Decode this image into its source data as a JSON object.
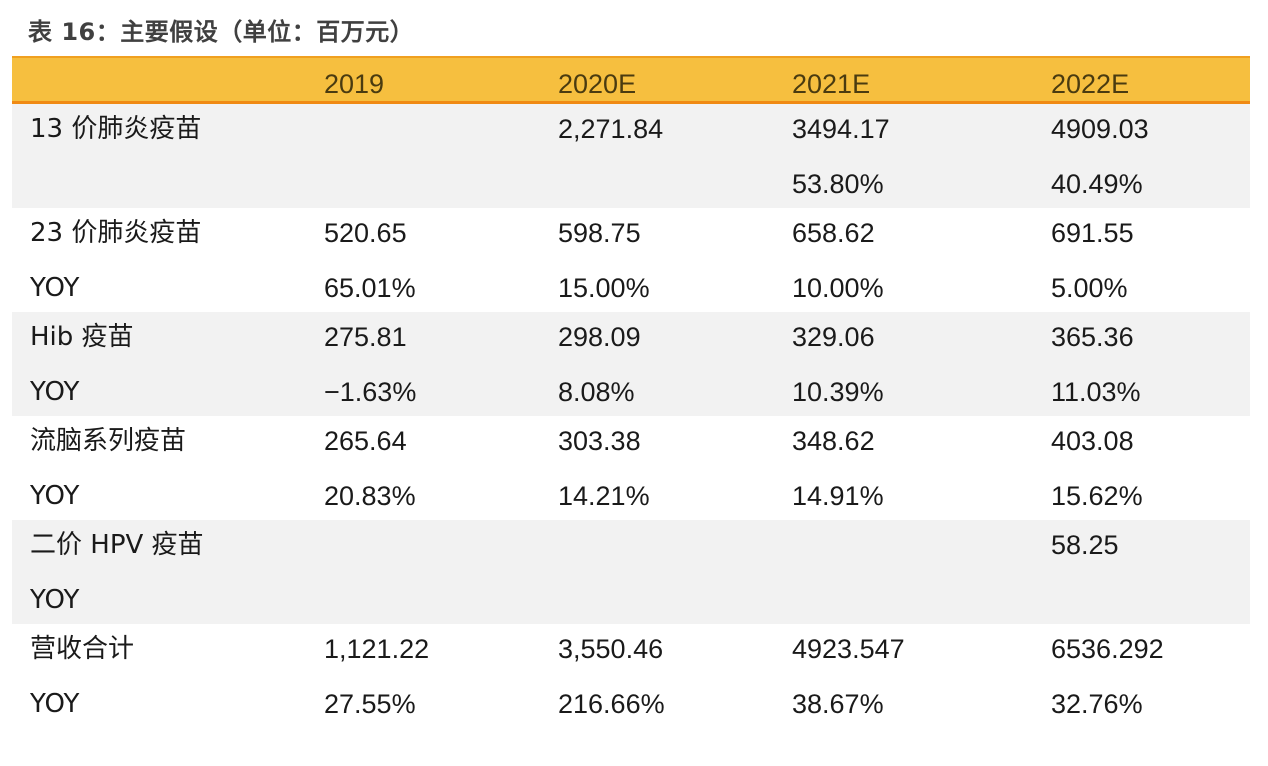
{
  "caption": "表 16：主要假设（单位：百万元）",
  "colors": {
    "header_bg": "#f6bf3f",
    "header_border": "#f08a14",
    "shaded_bg": "#f2f2f2"
  },
  "header": [
    "",
    "2019",
    "2020E",
    "2021E",
    "2022E"
  ],
  "groups": [
    {
      "shaded": true,
      "rows": [
        [
          "13 价肺炎疫苗",
          "",
          "2,271.84",
          "3494.17",
          "4909.03"
        ],
        [
          "",
          "",
          "",
          "53.80%",
          "40.49%"
        ]
      ]
    },
    {
      "shaded": false,
      "rows": [
        [
          "23 价肺炎疫苗",
          "520.65",
          "598.75",
          "658.62",
          "691.55"
        ],
        [
          "YOY",
          "65.01%",
          "15.00%",
          "10.00%",
          "5.00%"
        ]
      ]
    },
    {
      "shaded": true,
      "rows": [
        [
          "Hib 疫苗",
          "275.81",
          "298.09",
          "329.06",
          "365.36"
        ],
        [
          "YOY",
          "−1.63%",
          "8.08%",
          "10.39%",
          "11.03%"
        ]
      ]
    },
    {
      "shaded": false,
      "rows": [
        [
          "流脑系列疫苗",
          "265.64",
          "303.38",
          "348.62",
          "403.08"
        ],
        [
          "YOY",
          "20.83%",
          "14.21%",
          "14.91%",
          "15.62%"
        ]
      ]
    },
    {
      "shaded": true,
      "rows": [
        [
          "二价 HPV 疫苗",
          "",
          "",
          "",
          "58.25"
        ],
        [
          "YOY",
          "",
          "",
          "",
          ""
        ]
      ]
    },
    {
      "shaded": false,
      "rows": [
        [
          "营收合计",
          "1,121.22",
          "3,550.46",
          "4923.547",
          "6536.292"
        ],
        [
          "YOY",
          "27.55%",
          "216.66%",
          "38.67%",
          "32.76%"
        ]
      ]
    }
  ]
}
